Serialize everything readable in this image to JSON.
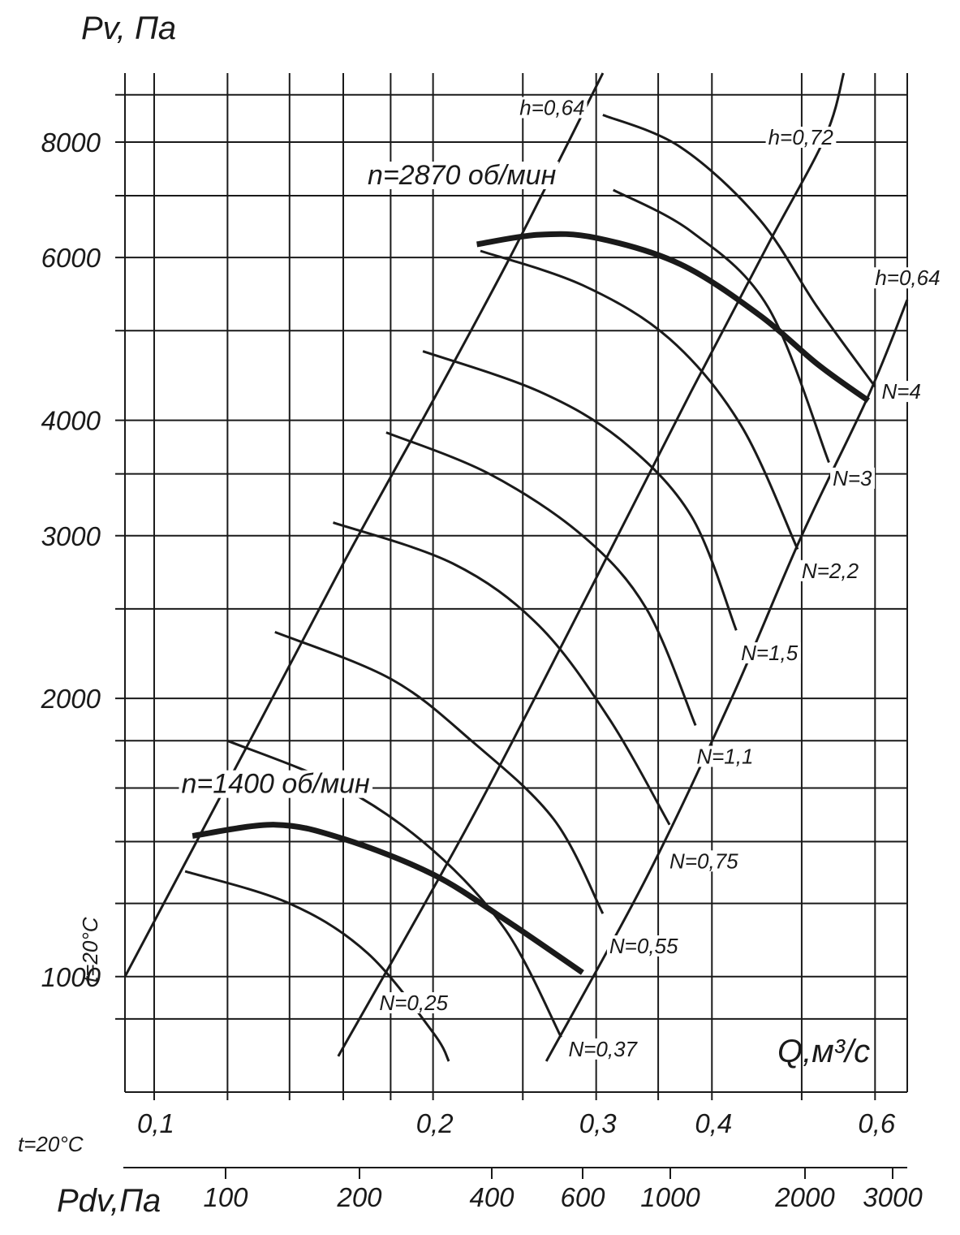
{
  "chart_data": {
    "type": "line",
    "title": "",
    "y_axis": {
      "label": "Pv, Па",
      "scale": "log",
      "range": [
        750,
        9500
      ],
      "tick_labels": [
        "1000",
        "2000",
        "3000",
        "4000",
        "6000",
        "8000"
      ],
      "tick_values": [
        1000,
        2000,
        3000,
        4000,
        6000,
        8000
      ]
    },
    "x_axis": {
      "label": "Q,м³/с",
      "scale": "log",
      "range": [
        0.093,
        0.65
      ],
      "tick_labels": [
        "0,1",
        "0,2",
        "0,3",
        "0,4",
        "0,6"
      ],
      "tick_values": [
        0.1,
        0.2,
        0.3,
        0.4,
        0.6
      ]
    },
    "secondary_x_axis": {
      "label": "Pdv,Па",
      "tick_labels": [
        "100",
        "200",
        "400",
        "600",
        "1000",
        "2000",
        "3000"
      ]
    },
    "condition_labels": {
      "side": "t=20°C",
      "bottom": "t=20°C"
    },
    "grid": true,
    "series": [
      {
        "name": "n=2870 об/мин",
        "kind": "performance",
        "points": [
          [
            0.223,
            6200
          ],
          [
            0.26,
            6350
          ],
          [
            0.3,
            6300
          ],
          [
            0.37,
            5900
          ],
          [
            0.45,
            5200
          ],
          [
            0.52,
            4600
          ],
          [
            0.59,
            4200
          ]
        ]
      },
      {
        "name": "n=1400 об/мин",
        "kind": "performance",
        "points": [
          [
            0.11,
            1420
          ],
          [
            0.135,
            1460
          ],
          [
            0.16,
            1410
          ],
          [
            0.2,
            1290
          ],
          [
            0.24,
            1150
          ],
          [
            0.29,
            1010
          ]
        ]
      },
      {
        "name": "h=0,64",
        "kind": "efficiency",
        "points": [
          [
            0.093,
            1000
          ],
          [
            0.125,
            1750
          ],
          [
            0.16,
            2800
          ],
          [
            0.2,
            4200
          ],
          [
            0.24,
            5900
          ],
          [
            0.28,
            8000
          ],
          [
            0.305,
            9500
          ]
        ]
      },
      {
        "name": "h=0,72",
        "kind": "efficiency",
        "points": [
          [
            0.158,
            820
          ],
          [
            0.22,
            1480
          ],
          [
            0.3,
            2700
          ],
          [
            0.38,
            4300
          ],
          [
            0.46,
            6200
          ],
          [
            0.53,
            8100
          ],
          [
            0.555,
            9500
          ]
        ]
      },
      {
        "name": "h=0,64",
        "kind": "efficiency",
        "points": [
          [
            0.265,
            810
          ],
          [
            0.34,
            1280
          ],
          [
            0.42,
            2000
          ],
          [
            0.5,
            3000
          ],
          [
            0.59,
            4250
          ],
          [
            0.65,
            5400
          ]
        ]
      },
      {
        "name": "N=0,25",
        "kind": "power",
        "points": [
          [
            0.108,
            1300
          ],
          [
            0.14,
            1200
          ],
          [
            0.17,
            1060
          ],
          [
            0.2,
            870
          ],
          [
            0.208,
            810
          ]
        ]
      },
      {
        "name": "N=0,37",
        "kind": "power",
        "points": [
          [
            0.12,
            1800
          ],
          [
            0.16,
            1600
          ],
          [
            0.2,
            1370
          ],
          [
            0.24,
            1120
          ],
          [
            0.275,
            860
          ]
        ]
      },
      {
        "name": "N=0,55",
        "kind": "power",
        "points": [
          [
            0.135,
            2360
          ],
          [
            0.18,
            2100
          ],
          [
            0.22,
            1800
          ],
          [
            0.27,
            1480
          ],
          [
            0.305,
            1170
          ]
        ]
      },
      {
        "name": "N=0,75",
        "kind": "power",
        "points": [
          [
            0.156,
            3100
          ],
          [
            0.21,
            2800
          ],
          [
            0.26,
            2400
          ],
          [
            0.31,
            1900
          ],
          [
            0.36,
            1460
          ]
        ]
      },
      {
        "name": "N=1,1",
        "kind": "power",
        "points": [
          [
            0.178,
            3880
          ],
          [
            0.23,
            3500
          ],
          [
            0.29,
            3000
          ],
          [
            0.34,
            2500
          ],
          [
            0.384,
            1870
          ]
        ]
      },
      {
        "name": "N=1,5",
        "kind": "power",
        "points": [
          [
            0.195,
            4750
          ],
          [
            0.26,
            4300
          ],
          [
            0.32,
            3800
          ],
          [
            0.38,
            3150
          ],
          [
            0.425,
            2370
          ]
        ]
      },
      {
        "name": "N=2,2",
        "kind": "power",
        "points": [
          [
            0.225,
            6100
          ],
          [
            0.29,
            5600
          ],
          [
            0.36,
            4900
          ],
          [
            0.43,
            3950
          ],
          [
            0.495,
            2900
          ]
        ]
      },
      {
        "name": "N=3",
        "kind": "power",
        "points": [
          [
            0.313,
            7100
          ],
          [
            0.38,
            6400
          ],
          [
            0.46,
            5300
          ],
          [
            0.535,
            3600
          ]
        ]
      },
      {
        "name": "N=4",
        "kind": "power",
        "points": [
          [
            0.305,
            8560
          ],
          [
            0.37,
            7900
          ],
          [
            0.45,
            6600
          ],
          [
            0.52,
            5300
          ],
          [
            0.6,
            4350
          ]
        ]
      }
    ],
    "annotations": [
      {
        "text": "n=2870 об/мин",
        "anchor": [
          0.17,
          7200
        ]
      },
      {
        "text": "n=1400 об/мин",
        "anchor": [
          0.107,
          1580
        ]
      },
      {
        "text": "h=0,64",
        "anchor": [
          0.248,
          8560
        ]
      },
      {
        "text": "h=0,72",
        "anchor": [
          0.46,
          7950
        ]
      },
      {
        "text": "h=0,64",
        "anchor": [
          0.6,
          5600
        ]
      },
      {
        "text": "N=4",
        "anchor": [
          0.61,
          4220
        ]
      },
      {
        "text": "N=3",
        "anchor": [
          0.54,
          3400
        ]
      },
      {
        "text": "N=2,2",
        "anchor": [
          0.5,
          2700
        ]
      },
      {
        "text": "N=1,5",
        "anchor": [
          0.43,
          2200
        ]
      },
      {
        "text": "N=1,1",
        "anchor": [
          0.385,
          1700
        ]
      },
      {
        "text": "N=0,75",
        "anchor": [
          0.36,
          1310
        ]
      },
      {
        "text": "N=0,55",
        "anchor": [
          0.31,
          1060
        ]
      },
      {
        "text": "N=0,25",
        "anchor": [
          0.175,
          920
        ]
      },
      {
        "text": "N=0,37",
        "anchor": [
          0.28,
          820
        ]
      }
    ]
  }
}
